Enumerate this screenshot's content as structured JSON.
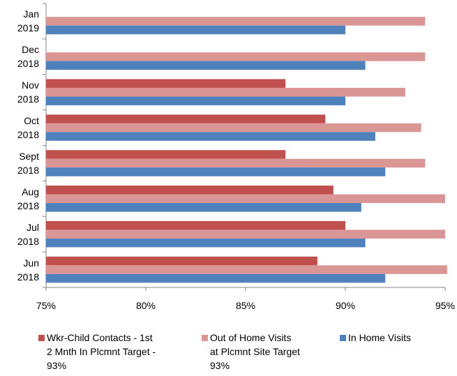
{
  "chart_data": {
    "type": "hbar",
    "categories": [
      "Jan 2019",
      "Dec 2018",
      "Nov 2018",
      "Oct 2018",
      "Sept 2018",
      "Aug 2018",
      "Jul 2018",
      "Jun 2018"
    ],
    "series": [
      {
        "name": "Wkr-Child Contacts - 1st 2 Mnth In Plcmnt Target - 93%",
        "color": "#c0504d",
        "values": [
          null,
          null,
          87.0,
          89.0,
          87.0,
          89.4,
          90.0,
          88.6
        ]
      },
      {
        "name": "Out of Home Visits at Plcmnt Site Target 93%",
        "color": "#d99694",
        "values": [
          94.0,
          94.0,
          93.0,
          93.8,
          94.0,
          95.0,
          95.0,
          95.1
        ]
      },
      {
        "name": "In Home Visits",
        "color": "#4f81bd",
        "values": [
          90.0,
          91.0,
          90.0,
          91.5,
          92.0,
          90.8,
          91.0,
          92.0
        ]
      }
    ],
    "xlim": [
      75,
      95
    ],
    "xticks": [
      {
        "value": 75,
        "label": "75%"
      },
      {
        "value": 80,
        "label": "80%"
      },
      {
        "value": 85,
        "label": "85%"
      },
      {
        "value": 90,
        "label": "90%"
      },
      {
        "value": 95,
        "label": "95%"
      }
    ],
    "legend": "bottom"
  }
}
